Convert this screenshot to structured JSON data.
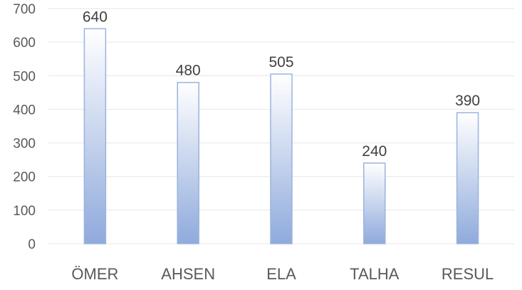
{
  "chart_data": {
    "type": "bar",
    "title": "",
    "xlabel": "",
    "ylabel": "",
    "categories": [
      "ÖMER",
      "AHSEN",
      "ELA",
      "TALHA",
      "RESUL"
    ],
    "values": [
      640,
      480,
      505,
      240,
      390
    ],
    "data_labels": [
      "640",
      "480",
      "505",
      "240",
      "390"
    ],
    "ylim": [
      0,
      700
    ],
    "yticks": [
      0,
      100,
      200,
      300,
      400,
      500,
      600,
      700
    ],
    "grid": true,
    "legend": "none",
    "colors": {
      "bar_top": "#ffffff",
      "bar_bottom": "#8faadc",
      "bar_border": "#9bb3de",
      "grid": "#e6e6e6",
      "text": "#595959"
    }
  }
}
